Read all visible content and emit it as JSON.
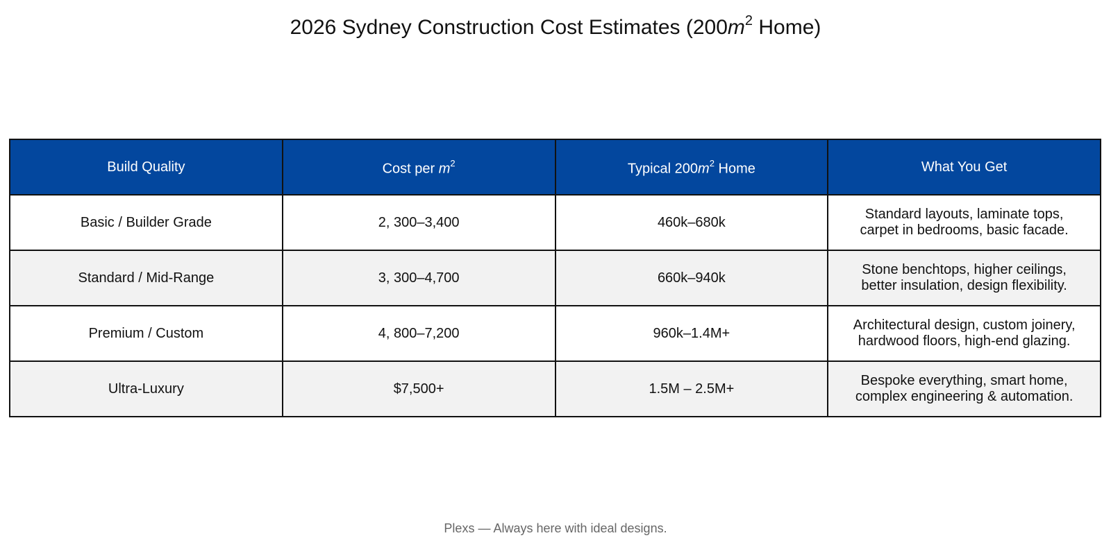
{
  "title": {
    "prefix": "2026 Sydney Construction Cost Estimates (200",
    "unit_var": "m",
    "unit_exp": "2",
    "suffix": " Home)"
  },
  "chart_data": {
    "type": "table",
    "columns": [
      {
        "label": "Build Quality"
      },
      {
        "label": "Cost per ",
        "unit_var": "m",
        "unit_exp": "2"
      },
      {
        "label": "Typical 200",
        "unit_var": "m",
        "unit_exp": "2",
        "label_suffix": " Home"
      },
      {
        "label": "What You Get"
      }
    ],
    "rows": [
      {
        "build_quality": "Basic / Builder Grade",
        "cost_per_m2": "2, 300–3,400",
        "typical_home": "460k–680k",
        "what_you_get": [
          "Standard layouts, laminate tops,",
          "carpet in bedrooms, basic facade."
        ]
      },
      {
        "build_quality": "Standard / Mid-Range",
        "cost_per_m2": "3, 300–4,700",
        "typical_home": "660k–940k",
        "what_you_get": [
          "Stone benchtops, higher ceilings,",
          "better insulation, design flexibility."
        ]
      },
      {
        "build_quality": "Premium / Custom",
        "cost_per_m2": "4, 800–7,200",
        "typical_home": "960k–1.4M+",
        "what_you_get": [
          "Architectural design, custom joinery,",
          "hardwood floors, high-end glazing."
        ]
      },
      {
        "build_quality": "Ultra-Luxury",
        "cost_per_m2": "$7,500+",
        "typical_home": "1.5M – 2.5M+",
        "what_you_get": [
          "Bespoke everything, smart home,",
          "complex engineering & automation."
        ]
      }
    ]
  },
  "footer": "Plexs — Always here with ideal designs.",
  "colors": {
    "header_bg": "#03479e",
    "header_text": "#ffffff",
    "alt_row_bg": "#f2f2f2",
    "border": "#111111",
    "footer_text": "#666666"
  }
}
